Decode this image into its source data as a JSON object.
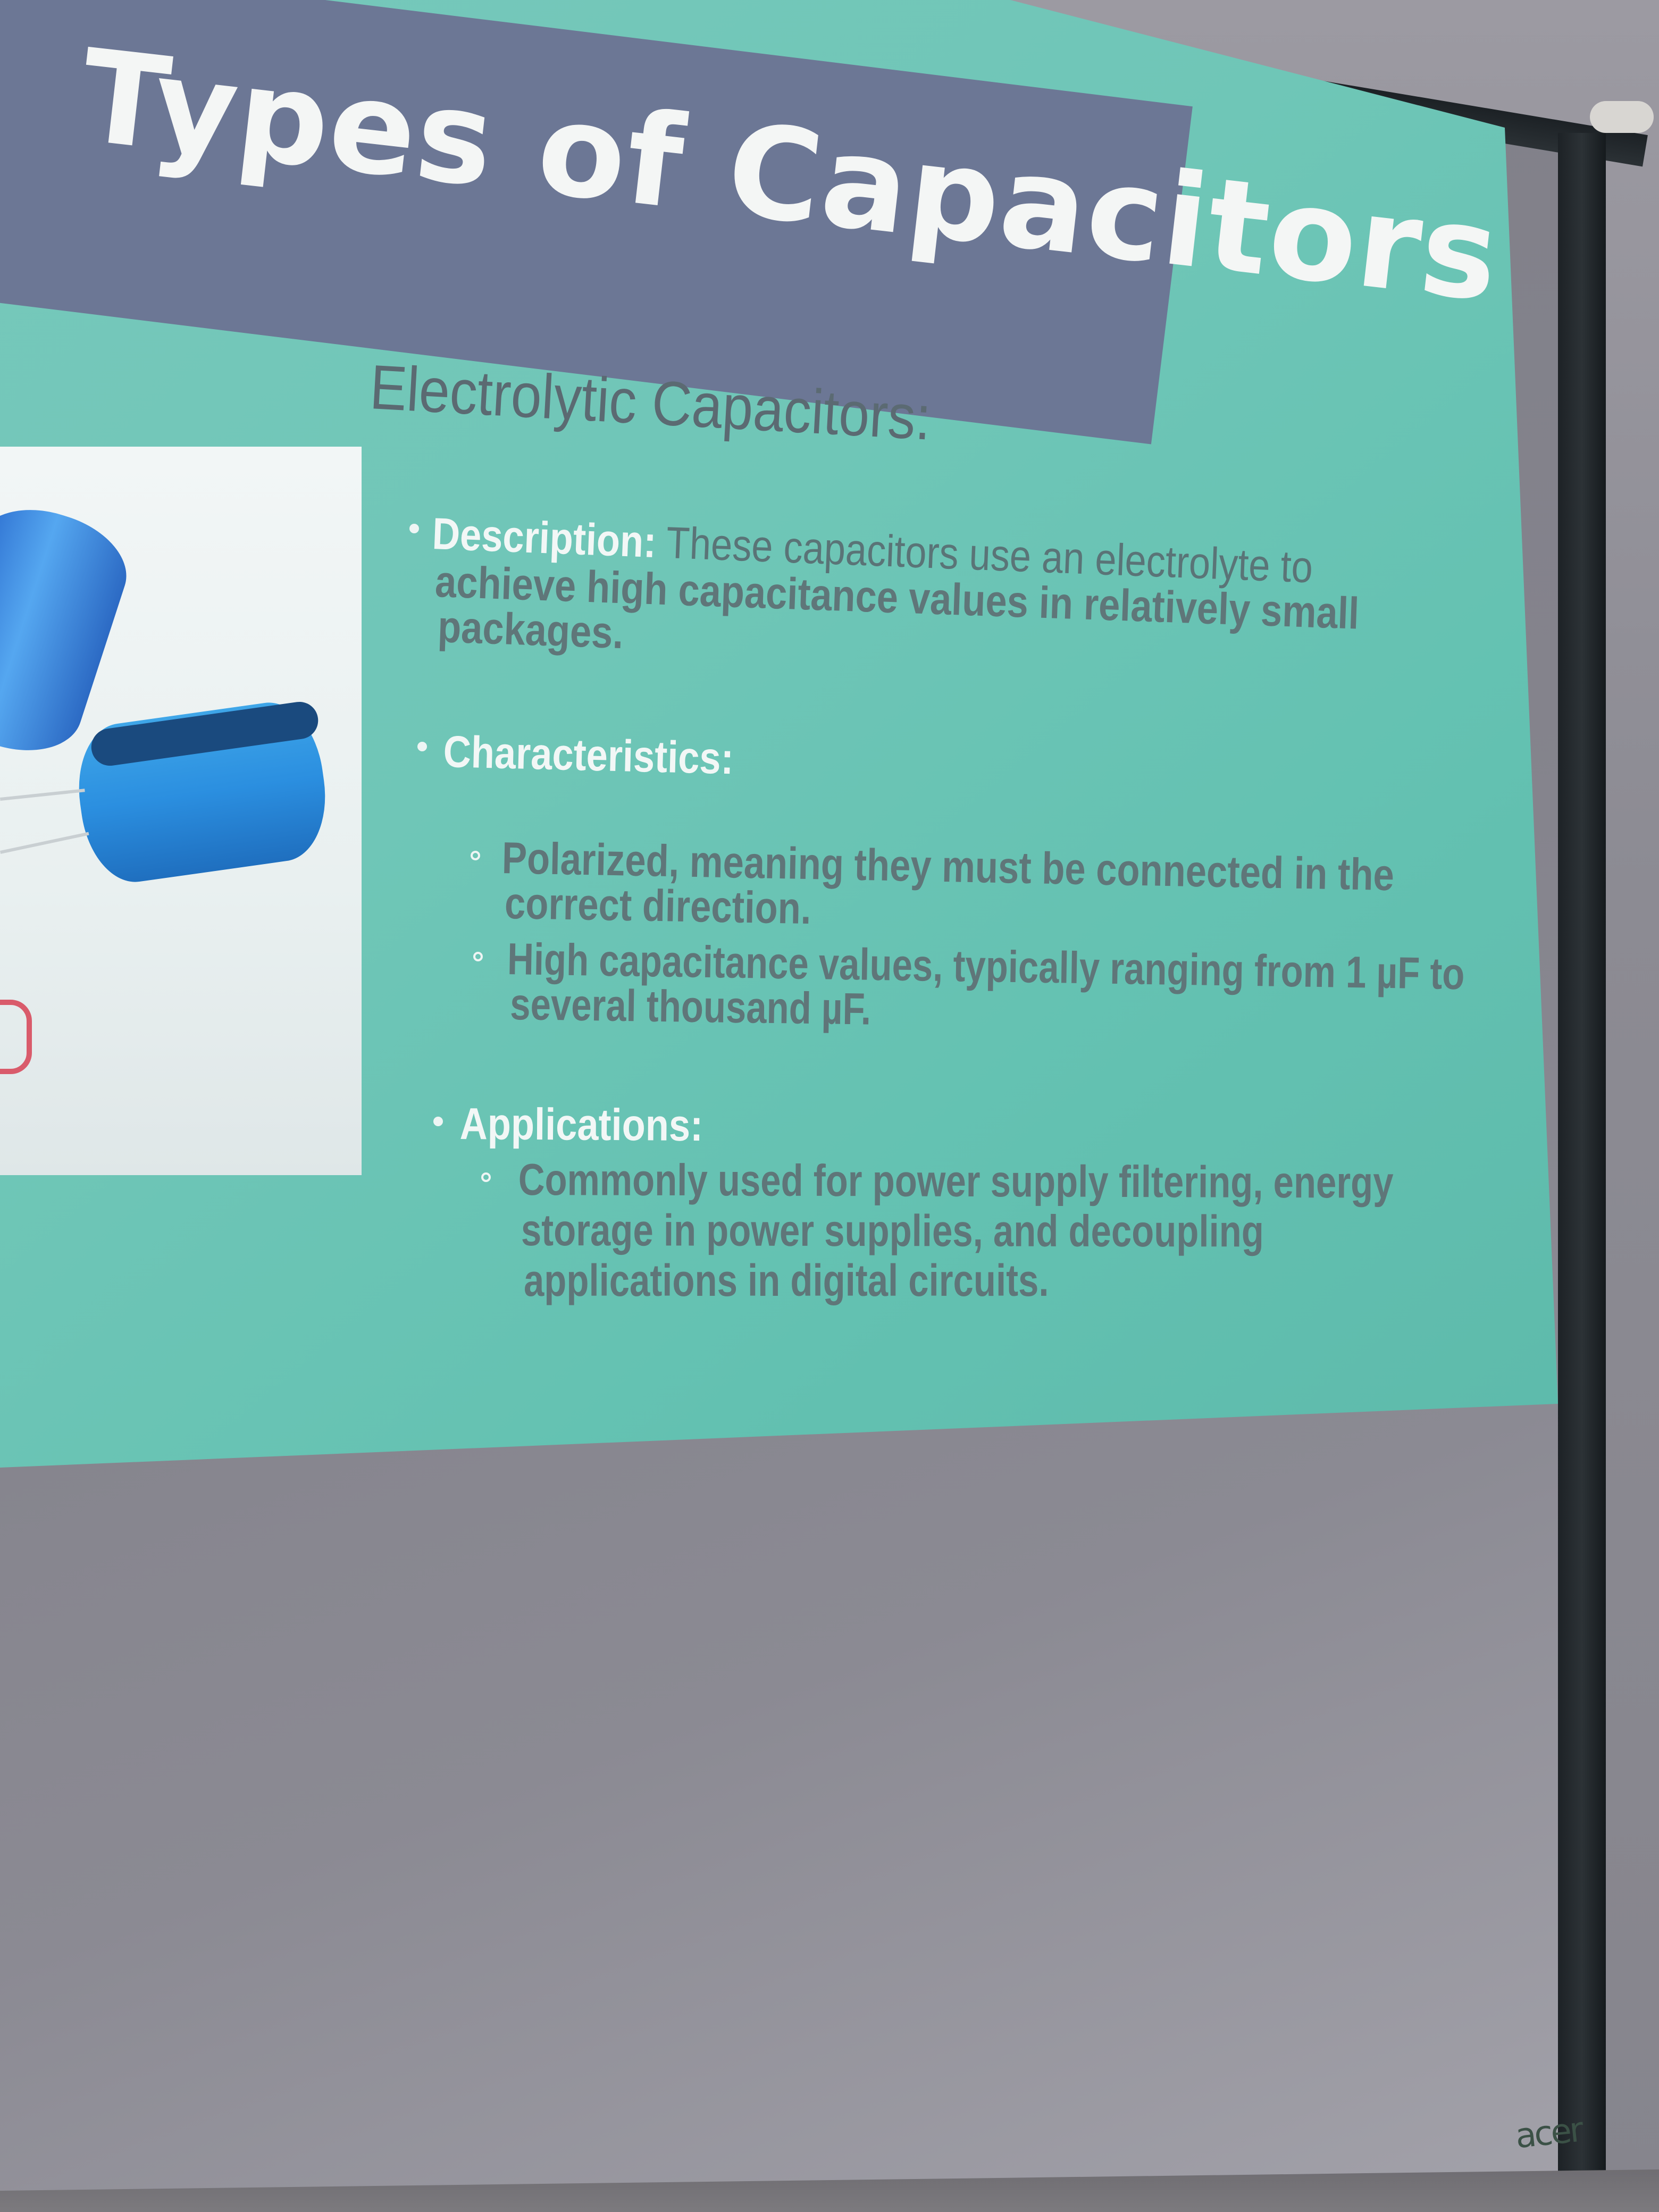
{
  "slide": {
    "title": "Types of Capacitors",
    "subheading": "Electrolytic Capacitors:",
    "description": {
      "label": "Description:",
      "line1": " These capacitors use an electrolyte to",
      "line2": "achieve high capacitance values in relatively small",
      "line3": "packages."
    },
    "characteristics": {
      "label": "Characteristics:",
      "items": [
        {
          "line1": "Polarized, meaning they must be connected in the",
          "line2": "correct direction."
        },
        {
          "line1": "High capacitance values, typically ranging from 1 µF to",
          "line2": "several thousand µF."
        }
      ]
    },
    "applications": {
      "label": "Applications:",
      "items": [
        {
          "line1": "Commonly used for power supply filtering, energy",
          "line2": "storage in power supplies, and decoupling",
          "line3": "applications in digital circuits."
        }
      ]
    }
  },
  "projector_brand": "acer",
  "colors": {
    "slide_background": "#6fc6b7",
    "title_band": "#6c7795",
    "title_text": "#f4f6f5",
    "body_text": "#5a7477",
    "label_text": "#f2f7f6",
    "screen_gray": "#86858d"
  }
}
